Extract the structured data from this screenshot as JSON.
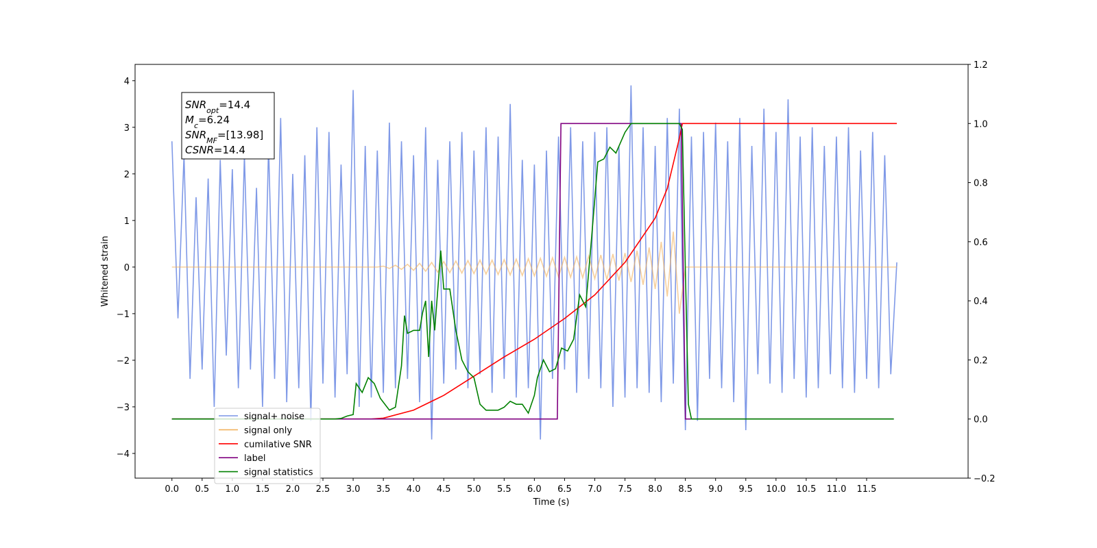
{
  "chart_data": {
    "type": "line",
    "x_label": "Time (s)",
    "y_label": "Whitened strain",
    "xlim": [
      -0.61,
      13.18
    ],
    "ylim": [
      -4.53,
      4.35
    ],
    "y2lim": [
      -0.2,
      1.2
    ],
    "xticks": [
      {
        "value": 0,
        "label": "0.0"
      },
      0.5,
      {
        "value": 1,
        "label": "1.0"
      },
      1.5,
      {
        "value": 2,
        "label": "2.0"
      },
      2.5,
      {
        "value": 3,
        "label": "3.0"
      },
      3.5,
      {
        "value": 4,
        "label": "4.0"
      },
      4.5,
      {
        "value": 5,
        "label": "5.0"
      },
      5.5,
      {
        "value": 6,
        "label": "6.0"
      },
      6.5,
      {
        "value": 7,
        "label": "7.0"
      },
      7.5,
      {
        "value": 8,
        "label": "8.0"
      },
      8.5,
      {
        "value": 9,
        "label": "9.0"
      },
      9.5,
      {
        "value": 10,
        "label": "10.0"
      },
      10.5,
      {
        "value": 11,
        "label": "11.0"
      },
      11.5
    ],
    "yticks": [
      {
        "value": -4,
        "label": "−4"
      },
      {
        "value": -3,
        "label": "−3"
      },
      {
        "value": -2,
        "label": "−2"
      },
      {
        "value": -1,
        "label": "−1"
      },
      0,
      1,
      2,
      3,
      4
    ],
    "y2ticks": [
      {
        "value": -0.2,
        "label": "−0.2"
      },
      {
        "value": 0,
        "label": "0.0"
      },
      0.2,
      0.4,
      0.6,
      0.8,
      {
        "value": 1,
        "label": "1.0"
      },
      1.2
    ],
    "legend": "lower left",
    "annotations": [
      {
        "symbol": "SNR",
        "sub": "opt",
        "text": "=14.4"
      },
      {
        "symbol": "M",
        "sub": "c",
        "text": "=6.24"
      },
      {
        "symbol": "SNR",
        "sub": "MF",
        "text": "=[13.98]"
      },
      {
        "symbol": "CSNR",
        "text": "=14.4"
      }
    ],
    "series": [
      {
        "name": "signal+ noise",
        "color": "#7893e6",
        "x": [
          0,
          0.1,
          0.2,
          0.3,
          0.4,
          0.5,
          0.6,
          0.7,
          0.8,
          0.9,
          1,
          1.1,
          1.2,
          1.3,
          1.4,
          1.5,
          1.6,
          1.7,
          1.8,
          1.9,
          2,
          2.1,
          2.2,
          2.3,
          2.4,
          2.5,
          2.6,
          2.7,
          2.8,
          2.9,
          3,
          3.1,
          3.2,
          3.3,
          3.4,
          3.5,
          3.6,
          3.7,
          3.8,
          3.9,
          4,
          4.1,
          4.2,
          4.3,
          4.4,
          4.5,
          4.6,
          4.7,
          4.8,
          4.9,
          5,
          5.1,
          5.2,
          5.3,
          5.4,
          5.5,
          5.6,
          5.7,
          5.8,
          5.9,
          6,
          6.1,
          6.2,
          6.3,
          6.4,
          6.5,
          6.6,
          6.7,
          6.8,
          6.9,
          7,
          7.1,
          7.2,
          7.3,
          7.4,
          7.5,
          7.6,
          7.7,
          7.8,
          7.9,
          8,
          8.1,
          8.2,
          8.3,
          8.4,
          8.5,
          8.6,
          8.7,
          8.8,
          8.9,
          9,
          9.1,
          9.2,
          9.3,
          9.4,
          9.5,
          9.6,
          9.7,
          9.8,
          9.9,
          10,
          10.1,
          10.2,
          10.3,
          10.4,
          10.5,
          10.6,
          10.7,
          10.8,
          10.9,
          11,
          11.1,
          11.2,
          11.3,
          11.4,
          11.5,
          11.6,
          11.7,
          11.8,
          11.9,
          12
        ],
        "values": [
          2.7,
          -1.1,
          2.4,
          -2.4,
          1.5,
          -2.2,
          1.9,
          -3.0,
          2.3,
          -1.9,
          2.1,
          -2.6,
          2.4,
          -2.2,
          1.7,
          -3.0,
          2.6,
          -2.4,
          3.2,
          -2.9,
          2.0,
          -2.6,
          2.4,
          -3.3,
          3.0,
          -2.5,
          2.9,
          -2.8,
          2.2,
          -2.3,
          3.8,
          -3.0,
          2.6,
          -2.8,
          2.5,
          -2.7,
          3.1,
          -2.6,
          2.7,
          -2.4,
          2.4,
          -2.9,
          3.0,
          -3.7,
          2.3,
          -2.5,
          2.7,
          -2.2,
          2.9,
          -2.6,
          2.5,
          -2.3,
          3.0,
          -2.7,
          2.8,
          -2.4,
          3.5,
          -2.8,
          2.3,
          -2.6,
          2.2,
          -3.7,
          2.5,
          -2.4,
          2.8,
          -2.2,
          3.0,
          -2.7,
          2.7,
          -2.4,
          2.9,
          -2.6,
          3.0,
          -3.0,
          2.6,
          -2.8,
          3.9,
          -2.6,
          3.0,
          -2.7,
          2.6,
          -2.9,
          3.2,
          -2.5,
          3.4,
          -3.5,
          2.8,
          -3.3,
          2.9,
          -2.4,
          3.1,
          -2.6,
          2.7,
          -2.9,
          3.2,
          -3.5,
          2.6,
          -2.3,
          3.4,
          -2.5,
          2.9,
          -2.7,
          3.6,
          -2.4,
          2.8,
          -2.8,
          3.0,
          -2.6,
          2.6,
          -2.3,
          2.8,
          -2.6,
          3.0,
          -2.7,
          2.5,
          -2.4,
          2.9,
          -2.6,
          2.4,
          -2.3,
          0.1
        ]
      },
      {
        "name": "signal only",
        "color": "#f2b15c",
        "x": [
          0,
          0.1,
          0.2,
          0.3,
          0.4,
          0.5,
          0.6,
          0.7,
          0.8,
          0.9,
          1,
          1.1,
          1.2,
          1.3,
          1.4,
          1.5,
          1.6,
          1.7,
          1.8,
          1.9,
          2,
          2.1,
          2.2,
          2.3,
          2.4,
          2.5,
          2.6,
          2.7,
          2.8,
          2.9,
          3,
          3.1,
          3.2,
          3.3,
          3.4,
          3.5,
          3.6,
          3.7,
          3.8,
          3.9,
          4,
          4.1,
          4.2,
          4.3,
          4.4,
          4.5,
          4.6,
          4.7,
          4.8,
          4.9,
          5,
          5.1,
          5.2,
          5.3,
          5.4,
          5.5,
          5.6,
          5.7,
          5.8,
          5.9,
          6,
          6.1,
          6.2,
          6.3,
          6.4,
          6.5,
          6.6,
          6.7,
          6.8,
          6.9,
          7,
          7.1,
          7.2,
          7.3,
          7.4,
          7.5,
          7.6,
          7.7,
          7.8,
          7.9,
          8,
          8.1,
          8.2,
          8.3,
          8.4,
          8.5,
          8.6,
          8.7,
          8.8,
          8.9,
          9,
          9.1,
          9.2,
          9.3,
          9.4,
          9.5,
          9.6,
          9.7,
          9.8,
          9.9,
          10,
          10.1,
          10.2,
          10.3,
          10.4,
          10.5,
          10.6,
          10.7,
          10.8,
          10.9,
          11,
          11.1,
          11.2,
          11.3,
          11.4,
          11.5,
          11.6,
          11.7,
          11.8,
          11.9,
          12
        ],
        "values": [
          0,
          0,
          0,
          0,
          0,
          0,
          0,
          0,
          0,
          0,
          0,
          0,
          0,
          0,
          0,
          0,
          0,
          0,
          0,
          0,
          0,
          0,
          0,
          0,
          0,
          0,
          0,
          0,
          0,
          0,
          0,
          0,
          0,
          0,
          0,
          0.02,
          -0.03,
          0.04,
          -0.05,
          0.06,
          -0.07,
          0.08,
          -0.09,
          0.1,
          -0.11,
          0.12,
          -0.12,
          0.13,
          -0.13,
          0.14,
          -0.14,
          0.15,
          -0.15,
          0.15,
          -0.16,
          0.16,
          -0.17,
          0.17,
          -0.18,
          0.18,
          -0.19,
          0.19,
          -0.2,
          0.2,
          -0.21,
          0.21,
          -0.22,
          0.22,
          -0.23,
          0.24,
          -0.25,
          0.26,
          -0.27,
          0.28,
          -0.29,
          0.3,
          -0.32,
          0.35,
          -0.38,
          0.42,
          -0.47,
          0.54,
          -0.63,
          0.76,
          -1.0,
          0,
          0,
          0,
          0,
          0,
          0,
          0,
          0,
          0,
          0,
          0,
          0,
          0,
          0,
          0,
          0,
          0,
          0,
          0,
          0,
          0,
          0,
          0,
          0,
          0,
          0,
          0,
          0,
          0,
          0,
          0,
          0,
          0,
          0,
          0,
          0
        ]
      },
      {
        "name": "cumilative SNR",
        "color": "#ff0000",
        "axis": "y2",
        "x": [
          0,
          3.3,
          3.5,
          4.0,
          4.5,
          5.0,
          5.5,
          6.0,
          6.5,
          7.0,
          7.5,
          8.0,
          8.2,
          8.4,
          8.45,
          12.0
        ],
        "values": [
          0,
          0,
          0.003,
          0.03,
          0.08,
          0.145,
          0.21,
          0.27,
          0.34,
          0.42,
          0.53,
          0.68,
          0.78,
          0.95,
          1.0,
          1.0
        ]
      },
      {
        "name": "label",
        "color": "#800080",
        "axis": "y2",
        "x": [
          0,
          6.38,
          6.44,
          8.43,
          8.5,
          11.95
        ],
        "values": [
          0,
          0,
          1,
          1,
          0,
          0
        ]
      },
      {
        "name": "signal statistics",
        "color": "#008000",
        "axis": "y2",
        "x": [
          0,
          2.7,
          2.8,
          2.9,
          3.0,
          3.05,
          3.15,
          3.25,
          3.35,
          3.45,
          3.6,
          3.7,
          3.8,
          3.85,
          3.9,
          4.0,
          4.1,
          4.15,
          4.2,
          4.25,
          4.3,
          4.35,
          4.45,
          4.5,
          4.6,
          4.7,
          4.8,
          4.9,
          5.0,
          5.1,
          5.2,
          5.3,
          5.4,
          5.5,
          5.6,
          5.7,
          5.8,
          5.9,
          6.0,
          6.05,
          6.15,
          6.25,
          6.35,
          6.45,
          6.55,
          6.65,
          6.75,
          6.85,
          6.95,
          7.05,
          7.15,
          7.25,
          7.35,
          7.5,
          7.6,
          7.8,
          8.0,
          8.4,
          8.45,
          8.5,
          8.55,
          8.6,
          11.95
        ],
        "values": [
          0,
          0,
          0.002,
          0.01,
          0.015,
          0.12,
          0.09,
          0.14,
          0.12,
          0.07,
          0.03,
          0.04,
          0.18,
          0.35,
          0.29,
          0.3,
          0.3,
          0.36,
          0.4,
          0.21,
          0.4,
          0.3,
          0.57,
          0.44,
          0.44,
          0.3,
          0.2,
          0.16,
          0.14,
          0.05,
          0.03,
          0.03,
          0.03,
          0.04,
          0.06,
          0.05,
          0.05,
          0.02,
          0.08,
          0.14,
          0.2,
          0.16,
          0.17,
          0.24,
          0.23,
          0.27,
          0.42,
          0.38,
          0.62,
          0.87,
          0.88,
          0.92,
          0.9,
          0.97,
          1.0,
          1.0,
          1.0,
          1.0,
          0.98,
          0.5,
          0.05,
          0,
          0
        ]
      }
    ]
  }
}
